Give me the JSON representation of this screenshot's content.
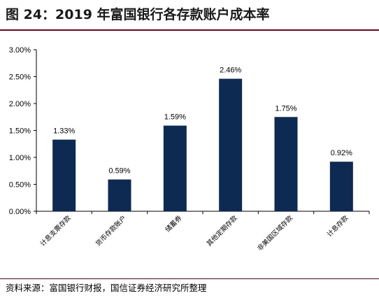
{
  "title": "图 24：2019 年富国银行各存款账户成本率",
  "source": "资料来源：富国银行财报，国信证券经济研究所整理",
  "colors": {
    "bar": "#0d2a52",
    "accent": "#7a0019",
    "axis": "#000000"
  },
  "chart_data": {
    "type": "bar",
    "categories": [
      "计息支票存款",
      "货币存款账户",
      "储蓄券",
      "其他定期存款",
      "非美国区域存款",
      "计息存款"
    ],
    "values": [
      1.33,
      0.59,
      1.59,
      2.46,
      1.75,
      0.92
    ],
    "value_labels": [
      "1.33%",
      "0.59%",
      "1.59%",
      "2.46%",
      "1.75%",
      "0.92%"
    ],
    "y_ticks": [
      0,
      0.5,
      1.0,
      1.5,
      2.0,
      2.5,
      3.0
    ],
    "y_tick_labels": [
      "0.00%",
      "0.50%",
      "1.00%",
      "1.50%",
      "2.00%",
      "2.50%",
      "3.00%"
    ],
    "ylim": [
      0,
      3.0
    ],
    "grid": false,
    "legend": "none"
  }
}
